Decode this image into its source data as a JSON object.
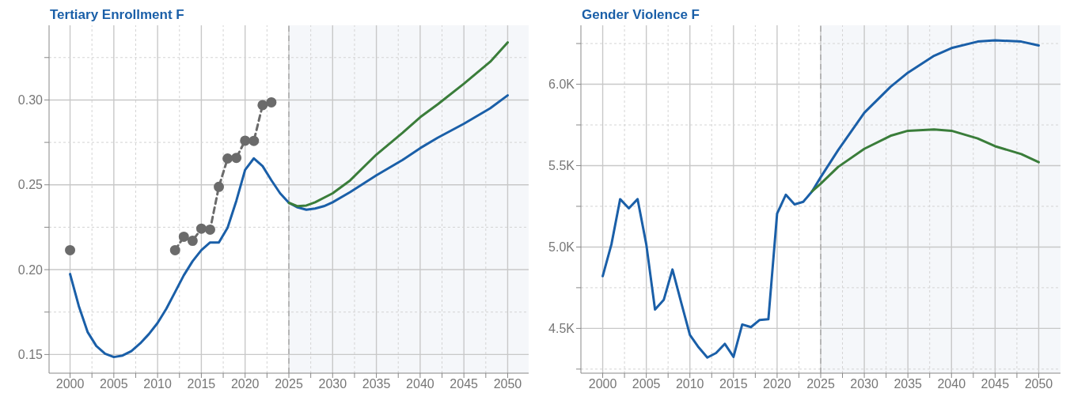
{
  "chart_data": [
    {
      "type": "line",
      "title": "Tertiary Enrollment F",
      "xlim": [
        1997.6,
        2052.4
      ],
      "ylim": [
        0.139,
        0.344
      ],
      "xticks": [
        2000,
        {
          "value": 2002.5,
          "label": null
        },
        2005,
        {
          "value": 2007.5,
          "label": null
        },
        2010,
        {
          "value": 2012.5,
          "label": null
        },
        2015,
        {
          "value": 2017.5,
          "label": null
        },
        2020,
        {
          "value": 2022.5,
          "label": null
        },
        2025,
        {
          "value": 2027.5,
          "label": null
        },
        2030,
        {
          "value": 2032.5,
          "label": null
        },
        2035,
        {
          "value": 2037.5,
          "label": null
        },
        2040,
        {
          "value": 2042.5,
          "label": null
        },
        2045,
        {
          "value": 2047.5,
          "label": null
        },
        2050
      ],
      "yticks": [
        {
          "value": 0.15,
          "label": "0.15"
        },
        {
          "value": 0.175,
          "label": null
        },
        {
          "value": 0.2,
          "label": "0.20"
        },
        {
          "value": 0.225,
          "label": null
        },
        {
          "value": 0.25,
          "label": "0.25"
        },
        {
          "value": 0.275,
          "label": null
        },
        {
          "value": 0.3,
          "label": "0.30"
        },
        {
          "value": 0.325,
          "label": null
        }
      ],
      "grid": true,
      "bands": [
        {
          "axis": "x",
          "from": 2025,
          "to": 2052.4,
          "color": "#f5f7fa"
        }
      ],
      "ref_lines": [
        {
          "axis": "x",
          "value": 2025,
          "color": "#aaaaaa",
          "line_style": "dashed"
        }
      ],
      "series": [
        {
          "color": "#1a5fa8",
          "marker": "none",
          "line_style": "solid",
          "x": [
            2000,
            2001,
            2002,
            2003,
            2004,
            2005,
            2006,
            2007,
            2008,
            2009,
            2010,
            2011,
            2012,
            2013,
            2014,
            2015,
            2016,
            2017,
            2018,
            2019,
            2020,
            2021,
            2022,
            2023,
            2024,
            2025,
            2026,
            2027,
            2028,
            2029,
            2030,
            2032,
            2035,
            2038,
            2040,
            2042,
            2045,
            2048,
            2050
          ],
          "values": [
            0.1974,
            0.1785,
            0.1633,
            0.155,
            0.1505,
            0.1485,
            0.1494,
            0.152,
            0.1565,
            0.162,
            0.1686,
            0.177,
            0.1868,
            0.1967,
            0.205,
            0.2115,
            0.216,
            0.216,
            0.2247,
            0.2406,
            0.2588,
            0.2656,
            0.261,
            0.2527,
            0.245,
            0.2394,
            0.2367,
            0.2353,
            0.236,
            0.2374,
            0.2397,
            0.2457,
            0.2556,
            0.2647,
            0.2716,
            0.2777,
            0.286,
            0.2951,
            0.3027
          ]
        },
        {
          "color": "#3a7d3a",
          "marker": "none",
          "line_style": "solid",
          "x": [
            2025,
            2026,
            2027,
            2028,
            2030,
            2032,
            2035,
            2038,
            2040,
            2042,
            2045,
            2048,
            2050
          ],
          "values": [
            0.2394,
            0.2374,
            0.2378,
            0.2397,
            0.245,
            0.2526,
            0.2678,
            0.2807,
            0.2898,
            0.2974,
            0.3096,
            0.3225,
            0.3339
          ]
        },
        {
          "color": "#6b6b6b",
          "marker": "circle",
          "line_style": "dashed",
          "x": [
            2000,
            2001,
            2002,
            2003,
            2004,
            2005,
            2006,
            2007,
            2008,
            2009,
            2010,
            2011,
            2012,
            2013,
            2014,
            2015,
            2016,
            2017,
            2018,
            2019,
            2020,
            2021,
            2022,
            2023
          ],
          "values": [
            0.2115,
            null,
            null,
            null,
            null,
            null,
            null,
            null,
            null,
            null,
            null,
            null,
            0.2115,
            0.2194,
            0.217,
            0.2242,
            0.2236,
            0.2488,
            0.2655,
            0.2659,
            0.276,
            0.2759,
            0.297,
            0.2986
          ]
        }
      ]
    },
    {
      "type": "line",
      "title": "Gender Violence F",
      "xlim": [
        1997.5,
        2052.5
      ],
      "ylim": [
        4225,
        6362
      ],
      "xticks": [
        2000,
        {
          "value": 2002.5,
          "label": null
        },
        2005,
        {
          "value": 2007.5,
          "label": null
        },
        2010,
        {
          "value": 2012.5,
          "label": null
        },
        2015,
        {
          "value": 2017.5,
          "label": null
        },
        2020,
        {
          "value": 2022.5,
          "label": null
        },
        2025,
        {
          "value": 2027.5,
          "label": null
        },
        2030,
        {
          "value": 2032.5,
          "label": null
        },
        2035,
        {
          "value": 2037.5,
          "label": null
        },
        2040,
        {
          "value": 2042.5,
          "label": null
        },
        2045,
        {
          "value": 2047.5,
          "label": null
        },
        2050
      ],
      "yticks": [
        {
          "value": 4250,
          "label": null
        },
        {
          "value": 4500,
          "label": "4.5K"
        },
        {
          "value": 4750,
          "label": null
        },
        {
          "value": 5000,
          "label": "5.0K"
        },
        {
          "value": 5250,
          "label": null
        },
        {
          "value": 5500,
          "label": "5.5K"
        },
        {
          "value": 5750,
          "label": null
        },
        {
          "value": 6000,
          "label": "6.0K"
        },
        {
          "value": 6250,
          "label": null
        }
      ],
      "grid": true,
      "bands": [
        {
          "axis": "x",
          "from": 2025,
          "to": 2052.5,
          "color": "#f5f7fa"
        }
      ],
      "ref_lines": [
        {
          "axis": "x",
          "value": 2025,
          "color": "#aaaaaa",
          "line_style": "dashed"
        }
      ],
      "series": [
        {
          "color": "#1a5fa8",
          "marker": "none",
          "line_style": "solid",
          "x": [
            2000,
            2001,
            2002,
            2003,
            2004,
            2005,
            2006,
            2007,
            2008,
            2009,
            2010,
            2011,
            2012,
            2013,
            2014,
            2015,
            2016,
            2017,
            2018,
            2019,
            2020,
            2021,
            2022,
            2023,
            2024,
            2025,
            2027,
            2030,
            2033,
            2035,
            2038,
            2040,
            2043,
            2045,
            2048,
            2050
          ],
          "values": [
            4821,
            5016,
            5294,
            5238,
            5294,
            5016,
            4616,
            4675,
            4862,
            4659,
            4460,
            4384,
            4321,
            4349,
            4405,
            4325,
            4524,
            4508,
            4552,
            4556,
            5206,
            5321,
            5262,
            5278,
            5341,
            5429,
            5595,
            5825,
            5984,
            6071,
            6175,
            6222,
            6262,
            6270,
            6262,
            6238
          ]
        },
        {
          "color": "#3a7d3a",
          "marker": "none",
          "line_style": "solid",
          "x": [
            2024,
            2025,
            2027,
            2030,
            2033,
            2035,
            2038,
            2040,
            2043,
            2045,
            2048,
            2050
          ],
          "values": [
            5341,
            5389,
            5492,
            5603,
            5683,
            5714,
            5722,
            5714,
            5667,
            5619,
            5571,
            5521
          ]
        }
      ]
    }
  ]
}
